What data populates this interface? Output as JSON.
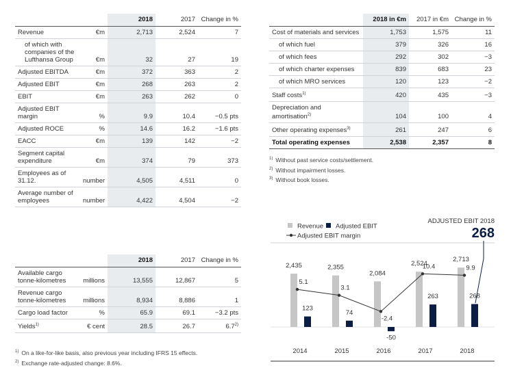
{
  "table1": {
    "headers": [
      "2018",
      "2017",
      "Change in %"
    ],
    "rows": [
      {
        "label": "Revenue",
        "unit": "€m",
        "values": [
          "2,713",
          "2,524",
          "7"
        ]
      },
      {
        "label": "of which with companies of the Lufthansa Group",
        "unit": "€m",
        "values": [
          "32",
          "27",
          "19"
        ],
        "indent": true
      },
      {
        "label": "Adjusted EBITDA",
        "unit": "€m",
        "values": [
          "372",
          "363",
          "2"
        ]
      },
      {
        "label": "Adjusted EBIT",
        "unit": "€m",
        "values": [
          "268",
          "263",
          "2"
        ]
      },
      {
        "label": "EBIT",
        "unit": "€m",
        "values": [
          "263",
          "262",
          "0"
        ]
      },
      {
        "label": "Adjusted EBIT margin",
        "unit": "%",
        "values": [
          "9.9",
          "10.4",
          "−0.5 pts"
        ]
      },
      {
        "label": "Adjusted ROCE",
        "unit": "%",
        "values": [
          "14.6",
          "16.2",
          "−1.6 pts"
        ]
      },
      {
        "label": "EACC",
        "unit": "€m",
        "values": [
          "139",
          "142",
          "−2"
        ]
      },
      {
        "label": "Segment capital expenditure",
        "unit": "€m",
        "values": [
          "374",
          "79",
          "373"
        ]
      },
      {
        "label": "Employees as of 31.12.",
        "unit": "number",
        "values": [
          "4,505",
          "4,511",
          "0"
        ]
      },
      {
        "label": "Average number of employees",
        "unit": "number",
        "values": [
          "4,422",
          "4,504",
          "−2"
        ]
      }
    ]
  },
  "table2": {
    "headers": [
      "2018 in €m",
      "2017 in €m",
      "Change in %"
    ],
    "rows": [
      {
        "label": "Cost of materials and services",
        "values": [
          "1,753",
          "1,575",
          "11"
        ]
      },
      {
        "label": "of which fuel",
        "values": [
          "379",
          "326",
          "16"
        ],
        "indent": true
      },
      {
        "label": "of which fees",
        "values": [
          "292",
          "302",
          "−3"
        ],
        "indent": true
      },
      {
        "label": "of which charter expenses",
        "values": [
          "839",
          "683",
          "23"
        ],
        "indent": true
      },
      {
        "label": "of which MRO services",
        "values": [
          "120",
          "123",
          "−2"
        ],
        "indent": true
      },
      {
        "label": "Staff costs",
        "sup": "1)",
        "values": [
          "420",
          "435",
          "−3"
        ]
      },
      {
        "label": "Depreciation and amortisation",
        "sup": "2)",
        "values": [
          "104",
          "100",
          "4"
        ]
      },
      {
        "label": "Other operating expenses",
        "sup": "3)",
        "values": [
          "261",
          "247",
          "6"
        ]
      },
      {
        "label": "Total operating expenses",
        "values": [
          "2,538",
          "2,357",
          "8"
        ],
        "total": true
      }
    ],
    "notes": [
      {
        "mark": "1)",
        "text": "Without past service costs/settlement."
      },
      {
        "mark": "2)",
        "text": "Without impairment losses."
      },
      {
        "mark": "3)",
        "text": "Without book losses."
      }
    ]
  },
  "table3": {
    "headers": [
      "2018",
      "2017",
      "Change in %"
    ],
    "rows": [
      {
        "label": "Available cargo tonne-kilometres",
        "unit": "millions",
        "values": [
          "13,555",
          "12,867",
          "5"
        ]
      },
      {
        "label": "Revenue cargo tonne-kilometres",
        "unit": "millions",
        "values": [
          "8,934",
          "8,886",
          "1"
        ]
      },
      {
        "label": "Cargo load factor",
        "unit": "%",
        "values": [
          "65.9",
          "69.1",
          "−3.2 pts"
        ]
      },
      {
        "label": "Yields",
        "sup": "1)",
        "unit": "€ cent",
        "values": [
          "28.5",
          "26.7",
          "6.7"
        ],
        "change_sup": "2)"
      }
    ],
    "notes": [
      {
        "mark": "1)",
        "text": "On a like-for-like basis, also previous year including IFRS 15 effects."
      },
      {
        "mark": "2)",
        "text": "Exchange rate-adjusted change: 8.6%."
      }
    ]
  },
  "chart_data": {
    "type": "bar",
    "title": "ADJUSTED EBIT 2018",
    "highlight": 268,
    "categories": [
      "2014",
      "2015",
      "2016",
      "2017",
      "2018"
    ],
    "series": [
      {
        "name": "Revenue",
        "color": "#c6c6c6",
        "values": [
          2435,
          2355,
          2084,
          2524,
          2713
        ],
        "value_labels": [
          "2,435",
          "2,355",
          "2,084",
          "2,524",
          "2,713"
        ]
      },
      {
        "name": "Adjusted EBIT",
        "color": "#0b1d45",
        "values": [
          123,
          74,
          -50,
          263,
          268
        ]
      },
      {
        "name": "Adjusted EBIT margin",
        "color": "#333333",
        "type": "line",
        "values": [
          5.1,
          3.1,
          -2.4,
          10.4,
          9.9
        ]
      }
    ]
  }
}
